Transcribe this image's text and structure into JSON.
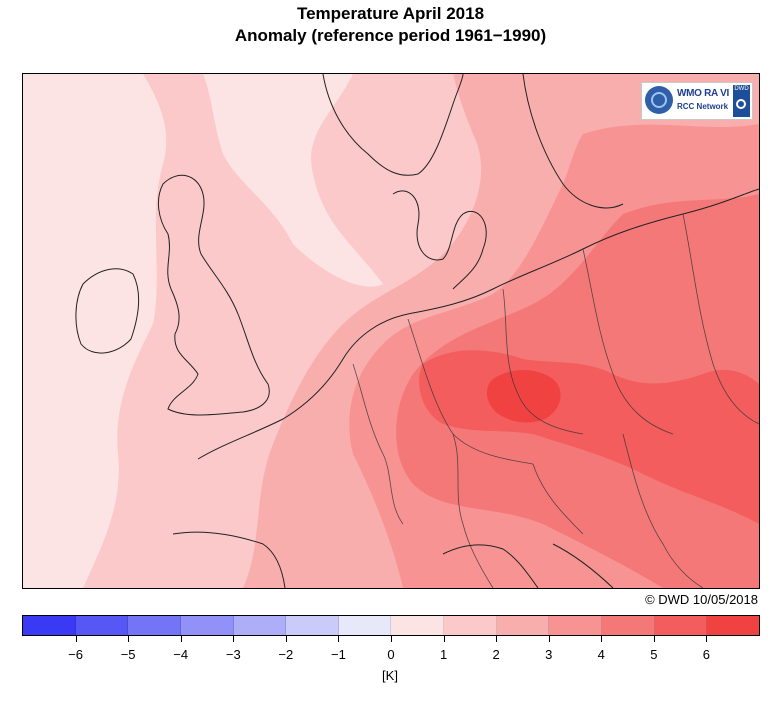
{
  "header": {
    "title_line1": "Temperature April 2018",
    "title_line2": "Anomaly (reference period 1961−1990)"
  },
  "logo": {
    "line1": "WMO RA VI",
    "line2": "RCC Network",
    "badge": "DWD"
  },
  "copyright": "© DWD 10/05/2018",
  "colorbar": {
    "unit": "[K]",
    "colors": [
      "#3a3af5",
      "#5757f5",
      "#7474f6",
      "#9191f7",
      "#aeaef8",
      "#cbcbf9",
      "#e8e8fb",
      "#fde4e4",
      "#fbc9c9",
      "#f9aeae",
      "#f79393",
      "#f57878",
      "#f35d5d",
      "#f14242"
    ],
    "tick_labels": [
      "−6",
      "−5",
      "−4",
      "−3",
      "−2",
      "−1",
      "0",
      "1",
      "2",
      "3",
      "4",
      "5",
      "6"
    ]
  },
  "anomaly_colors": {
    "a0_1": "#fde4e4",
    "a1_2": "#fbc9c9",
    "a2_3": "#f9aeae",
    "a3_4": "#f79393",
    "a4_5": "#f57878",
    "a5_6": "#f35d5d",
    "a6_plus": "#f14242"
  }
}
